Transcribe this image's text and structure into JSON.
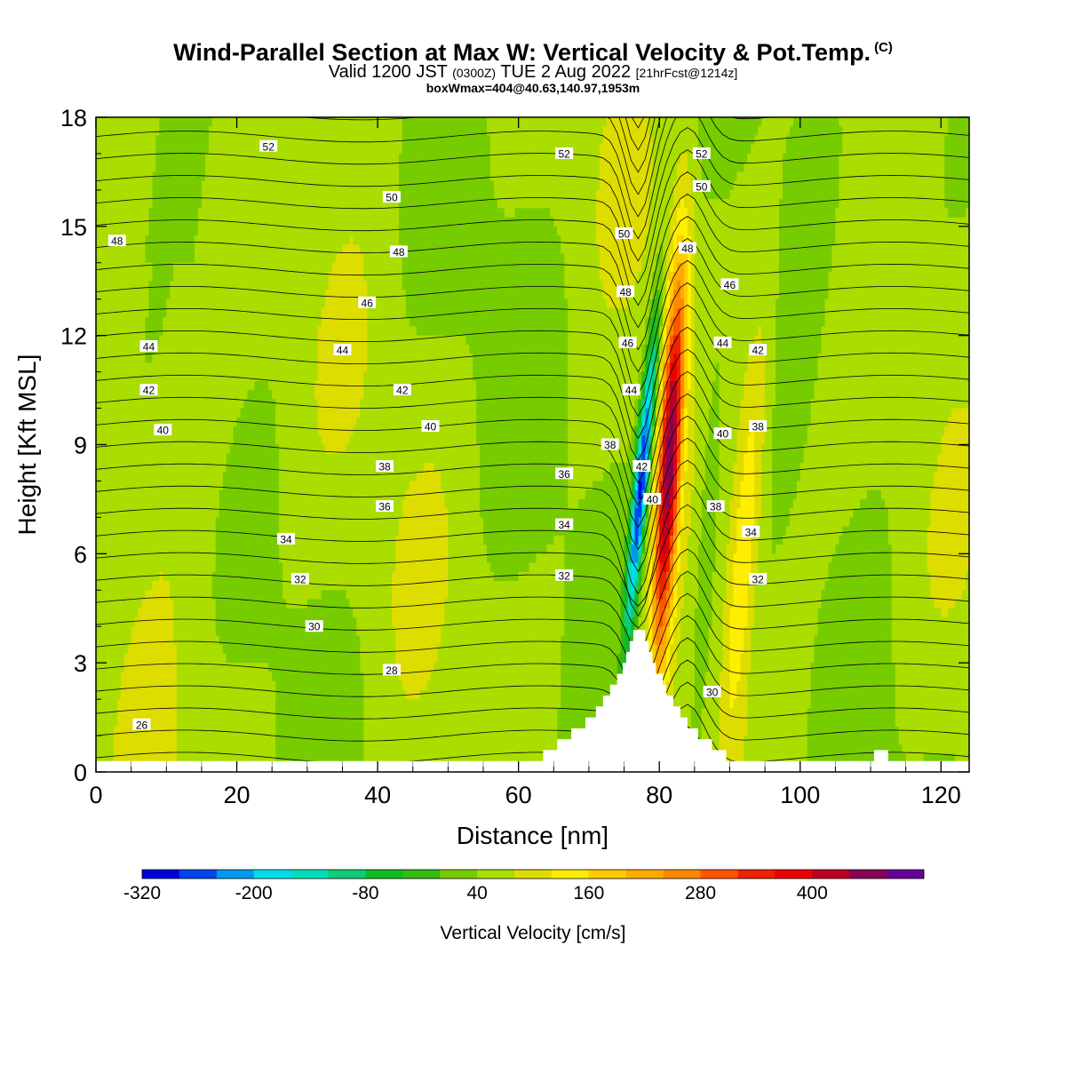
{
  "title": {
    "main": "Wind-Parallel Section at Max W: Vertical Velocity & Pot.Temp.",
    "copyright": "(C)",
    "valid_prefix": "Valid 1200 JST",
    "valid_utc": "(0300Z)",
    "valid_date": "TUE 2 Aug 2022",
    "forecast": "[21hrFcst@1214z]",
    "box": "boxWmax=404@40.63,140.97,1953m"
  },
  "chart_data": {
    "type": "heatmap",
    "xlabel": "Distance [nm]",
    "ylabel": "Height [Kft MSL]",
    "xlim": [
      0,
      124
    ],
    "ylim": [
      0,
      18
    ],
    "xticks": [
      0,
      20,
      40,
      60,
      80,
      100,
      120
    ],
    "yticks": [
      0,
      3,
      6,
      9,
      12,
      15,
      18
    ],
    "grid": false,
    "colorbar": {
      "title": "Vertical Velocity [cm/s]",
      "labels": [
        "-320",
        "-200",
        "-80",
        "40",
        "160",
        "280",
        "400"
      ],
      "bins": [
        "#0000dd",
        "#0044ee",
        "#0099ee",
        "#00ddee",
        "#00ddbb",
        "#11cc77",
        "#11bb22",
        "#33bb11",
        "#77cc00",
        "#aadd00",
        "#dddd00",
        "#ffee00",
        "#ffcc00",
        "#ffaa00",
        "#ff8800",
        "#ff5500",
        "#ee2200",
        "#ee0000",
        "#bb0022",
        "#880055",
        "#660099"
      ]
    },
    "w_field": {
      "description_values": "vertical velocity cm/s",
      "updraft_max": 404,
      "updraft_x": 81,
      "downdraft_min": -330,
      "downdraft_x": 77
    },
    "theta_contours": {
      "levels": [
        26,
        28,
        30,
        32,
        34,
        36,
        38,
        40,
        42,
        44,
        46,
        48,
        50,
        52
      ],
      "labels": [
        {
          "text": "52",
          "x": 24.5,
          "y": 17.2
        },
        {
          "text": "52",
          "x": 66.5,
          "y": 17.0
        },
        {
          "text": "50",
          "x": 42,
          "y": 15.8
        },
        {
          "text": "48",
          "x": 3,
          "y": 14.6
        },
        {
          "text": "48",
          "x": 43,
          "y": 14.3
        },
        {
          "text": "46",
          "x": 38.5,
          "y": 12.9
        },
        {
          "text": "44",
          "x": 7.5,
          "y": 11.7
        },
        {
          "text": "44",
          "x": 35,
          "y": 11.6
        },
        {
          "text": "42",
          "x": 7.5,
          "y": 10.5
        },
        {
          "text": "42",
          "x": 43.5,
          "y": 10.5
        },
        {
          "text": "40",
          "x": 9.5,
          "y": 9.4
        },
        {
          "text": "40",
          "x": 47.5,
          "y": 9.5
        },
        {
          "text": "38",
          "x": 41,
          "y": 8.4
        },
        {
          "text": "36",
          "x": 41,
          "y": 7.3
        },
        {
          "text": "36",
          "x": 66.5,
          "y": 8.2
        },
        {
          "text": "34",
          "x": 27,
          "y": 6.4
        },
        {
          "text": "34",
          "x": 66.5,
          "y": 6.8
        },
        {
          "text": "32",
          "x": 29,
          "y": 5.3
        },
        {
          "text": "32",
          "x": 66.5,
          "y": 5.4
        },
        {
          "text": "30",
          "x": 31,
          "y": 4.0
        },
        {
          "text": "28",
          "x": 42,
          "y": 2.8
        },
        {
          "text": "26",
          "x": 6.5,
          "y": 1.3
        },
        {
          "text": "50",
          "x": 75,
          "y": 14.8
        },
        {
          "text": "48",
          "x": 75.2,
          "y": 13.2
        },
        {
          "text": "46",
          "x": 75.5,
          "y": 11.8
        },
        {
          "text": "44",
          "x": 76,
          "y": 10.5
        },
        {
          "text": "42",
          "x": 77.5,
          "y": 8.4
        },
        {
          "text": "40",
          "x": 79,
          "y": 7.5
        },
        {
          "text": "38",
          "x": 73,
          "y": 9.0
        },
        {
          "text": "52",
          "x": 86,
          "y": 17.0
        },
        {
          "text": "50",
          "x": 86,
          "y": 16.1
        },
        {
          "text": "48",
          "x": 84,
          "y": 14.4
        },
        {
          "text": "46",
          "x": 90,
          "y": 13.4
        },
        {
          "text": "44",
          "x": 89,
          "y": 11.8
        },
        {
          "text": "42",
          "x": 94,
          "y": 11.6
        },
        {
          "text": "40",
          "x": 89,
          "y": 9.3
        },
        {
          "text": "38",
          "x": 94,
          "y": 9.5
        },
        {
          "text": "38",
          "x": 88,
          "y": 7.3
        },
        {
          "text": "34",
          "x": 93,
          "y": 6.6
        },
        {
          "text": "32",
          "x": 94,
          "y": 5.3
        },
        {
          "text": "30",
          "x": 87.5,
          "y": 2.2
        }
      ]
    },
    "terrain": [
      [
        0,
        0.3
      ],
      [
        63.5,
        0.3
      ],
      [
        63.5,
        0.6
      ],
      [
        65.5,
        0.6
      ],
      [
        65.5,
        0.9
      ],
      [
        67.5,
        0.9
      ],
      [
        67.5,
        1.2
      ],
      [
        69.5,
        1.2
      ],
      [
        69.5,
        1.5
      ],
      [
        71,
        1.5
      ],
      [
        71,
        1.8
      ],
      [
        72,
        1.8
      ],
      [
        72,
        2.1
      ],
      [
        73,
        2.1
      ],
      [
        73,
        2.4
      ],
      [
        74,
        2.4
      ],
      [
        74,
        2.7
      ],
      [
        74.8,
        2.7
      ],
      [
        74.8,
        3.0
      ],
      [
        75.3,
        3.0
      ],
      [
        75.3,
        3.3
      ],
      [
        75.8,
        3.3
      ],
      [
        75.8,
        3.6
      ],
      [
        76.3,
        3.6
      ],
      [
        76.3,
        3.9
      ],
      [
        78,
        3.9
      ],
      [
        78,
        3.6
      ],
      [
        78.5,
        3.6
      ],
      [
        78.5,
        3.3
      ],
      [
        79,
        3.3
      ],
      [
        79,
        3.0
      ],
      [
        79.5,
        3.0
      ],
      [
        79.5,
        2.7
      ],
      [
        80.5,
        2.7
      ],
      [
        80.5,
        2.4
      ],
      [
        81,
        2.4
      ],
      [
        81,
        2.1
      ],
      [
        82,
        2.1
      ],
      [
        82,
        1.8
      ],
      [
        83,
        1.8
      ],
      [
        83,
        1.5
      ],
      [
        84,
        1.5
      ],
      [
        84,
        1.2
      ],
      [
        85.5,
        1.2
      ],
      [
        85.5,
        0.9
      ],
      [
        87.5,
        0.9
      ],
      [
        87.5,
        0.6
      ],
      [
        89.5,
        0.6
      ],
      [
        89.5,
        0.3
      ],
      [
        110.5,
        0.3
      ],
      [
        110.5,
        0.6
      ],
      [
        112.5,
        0.6
      ],
      [
        112.5,
        0.3
      ],
      [
        124,
        0.3
      ]
    ]
  }
}
